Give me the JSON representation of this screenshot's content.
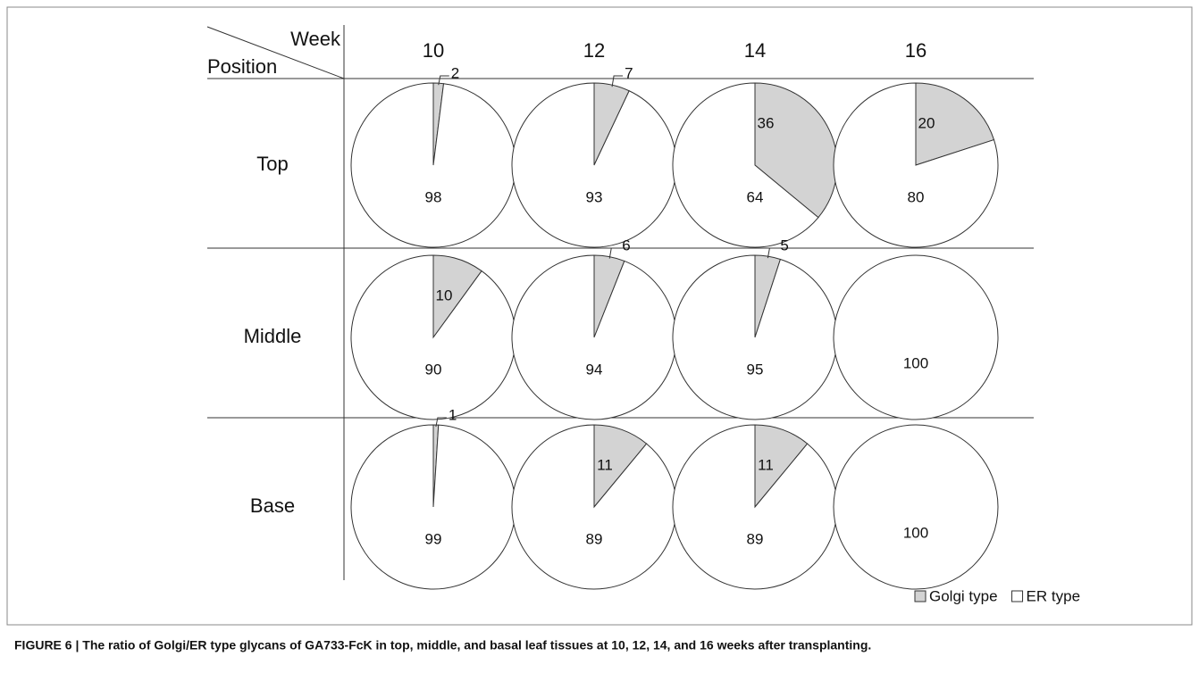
{
  "chart_data": {
    "type": "pie",
    "column_title": "Week",
    "row_title": "Position",
    "columns": [
      "10",
      "12",
      "14",
      "16"
    ],
    "rows": [
      "Top",
      "Middle",
      "Base"
    ],
    "series": [
      {
        "name": "Golgi type",
        "color": "#d3d3d3",
        "values": [
          [
            2,
            7,
            36,
            20
          ],
          [
            10,
            6,
            5,
            null
          ],
          [
            1,
            11,
            11,
            null
          ]
        ]
      },
      {
        "name": "ER type",
        "color": "#ffffff",
        "values": [
          [
            98,
            93,
            64,
            80
          ],
          [
            90,
            94,
            95,
            100
          ],
          [
            99,
            89,
            89,
            100
          ]
        ]
      }
    ],
    "caption": "FIGURE 6 | The ratio of Golgi/ER type glycans of GA733-FcK in top, middle, and basal leaf tissues at 10, 12, 14, and 16 weeks after transplanting."
  }
}
